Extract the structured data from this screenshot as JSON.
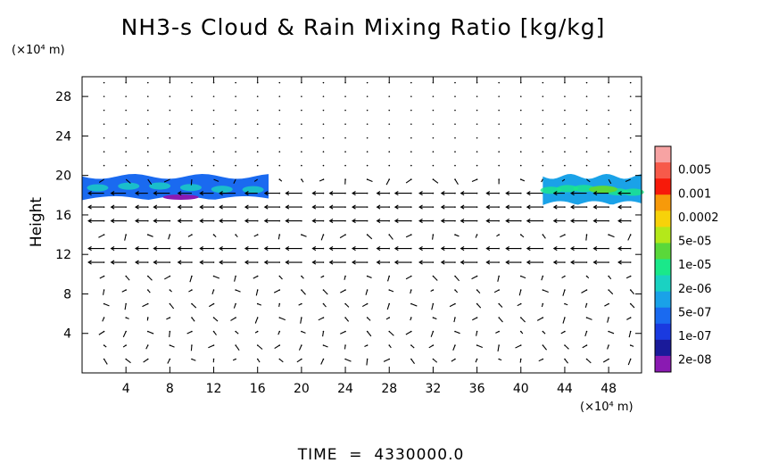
{
  "chart_data": {
    "type": "heatmap",
    "title": "NH3-s Cloud & Rain Mixing Ratio [kg/kg]",
    "ylabel": "Height",
    "y_unit": "(×10⁴ m)",
    "x_unit": "(×10⁴ m)",
    "x_ticks": [
      4,
      8,
      12,
      16,
      20,
      24,
      28,
      32,
      36,
      40,
      44,
      48
    ],
    "y_ticks": [
      4,
      8,
      12,
      16,
      20,
      24,
      28
    ],
    "xlim": [
      0,
      51
    ],
    "ylim": [
      0,
      30
    ],
    "footer": "TIME  =  4330000.0",
    "colorbar": {
      "labels": [
        "0.005",
        "0.001",
        "0.0002",
        "5e-05",
        "1e-05",
        "2e-06",
        "5e-07",
        "1e-07",
        "2e-08"
      ],
      "colors": [
        "#f7a3a3",
        "#f75a4a",
        "#f71a0a",
        "#f79a0a",
        "#f7d20a",
        "#b4e81a",
        "#5ad83a",
        "#1ae88a",
        "#1ad2c2",
        "#1aa2e8",
        "#1a6af0",
        "#1a3ae0",
        "#1a1a9a",
        "#8a1ab2"
      ]
    },
    "cloud_layers": [
      {
        "x_range": [
          0,
          17
        ],
        "y_range": [
          17.5,
          20
        ],
        "peak_value": "5e-07"
      },
      {
        "x_range": [
          42,
          51
        ],
        "y_range": [
          17,
          20
        ],
        "peak_value": "2e-06"
      }
    ],
    "wind_field": {
      "note": "vector arrows, mostly westward flow at 11-19 ×10⁴ m height",
      "strong_rows": [
        12,
        13,
        15,
        16.5,
        18
      ],
      "direction": "left"
    }
  }
}
